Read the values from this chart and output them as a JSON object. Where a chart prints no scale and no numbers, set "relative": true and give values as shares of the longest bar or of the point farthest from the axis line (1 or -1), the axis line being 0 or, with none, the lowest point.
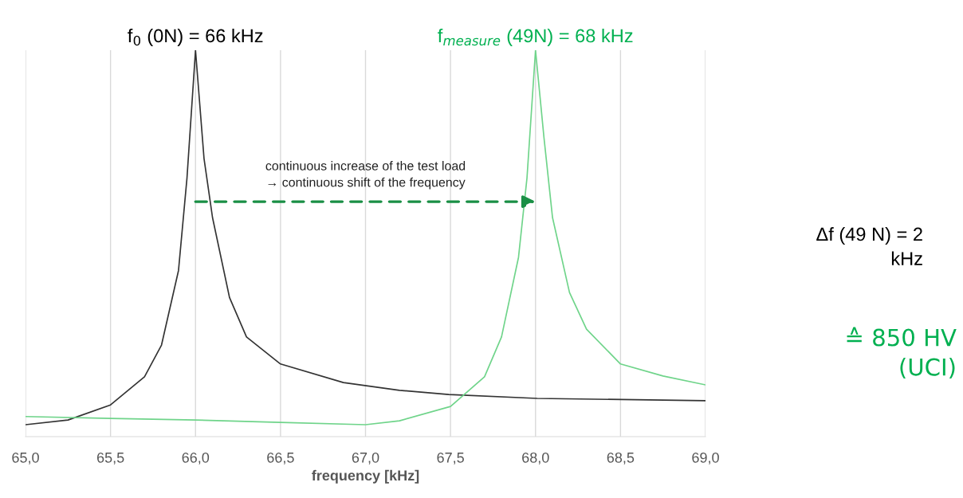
{
  "chart_data": {
    "type": "line",
    "relative": true,
    "xlabel": "frequency [kHz]",
    "xlim": [
      65.0,
      69.0
    ],
    "xticks": [
      {
        "value": 65.0,
        "label": "65,0"
      },
      {
        "value": 65.5,
        "label": "65,5"
      },
      {
        "value": 66.0,
        "label": "66,0"
      },
      {
        "value": 66.5,
        "label": "66,5"
      },
      {
        "value": 67.0,
        "label": "67,0"
      },
      {
        "value": 67.5,
        "label": "67,5"
      },
      {
        "value": 68.0,
        "label": "68,0"
      },
      {
        "value": 68.5,
        "label": "68,5"
      },
      {
        "value": 69.0,
        "label": "69,0"
      }
    ],
    "grid": "x",
    "tick_labels": "x",
    "marker": "none",
    "line_style": "solid",
    "series": [
      {
        "color": "#333333",
        "x": [
          65.0,
          65.25,
          65.5,
          65.7,
          65.8,
          65.9,
          65.95,
          66.0,
          66.05,
          66.1,
          66.2,
          66.3,
          66.5,
          66.87,
          67.2,
          67.49,
          68.01,
          69.0
        ],
        "values": [
          0.031,
          0.043,
          0.082,
          0.155,
          0.237,
          0.43,
          0.67,
          1.0,
          0.72,
          0.567,
          0.36,
          0.258,
          0.188,
          0.14,
          0.12,
          0.109,
          0.099,
          0.093
        ]
      },
      {
        "color": "#6fd48a",
        "x": [
          65.0,
          65.5,
          66.0,
          66.5,
          67.0,
          67.2,
          67.5,
          67.7,
          67.8,
          67.9,
          67.95,
          68.0,
          68.05,
          68.1,
          68.2,
          68.3,
          68.5,
          68.75,
          69.0
        ],
        "values": [
          0.052,
          0.047,
          0.043,
          0.037,
          0.031,
          0.041,
          0.078,
          0.155,
          0.258,
          0.464,
          0.67,
          1.0,
          0.773,
          0.567,
          0.373,
          0.278,
          0.188,
          0.157,
          0.134
        ]
      }
    ],
    "annotations": [
      "f$_{0}$ (0N) = 66 kHz",
      "f$_{measure}$ (49N) = 68 kHz",
      "continuous increase of the test load\n→ continuous shift of the frequency",
      "Δf (49 N) = 2\nkHz",
      "≙ 850 HV\n(UCI)"
    ]
  }
}
